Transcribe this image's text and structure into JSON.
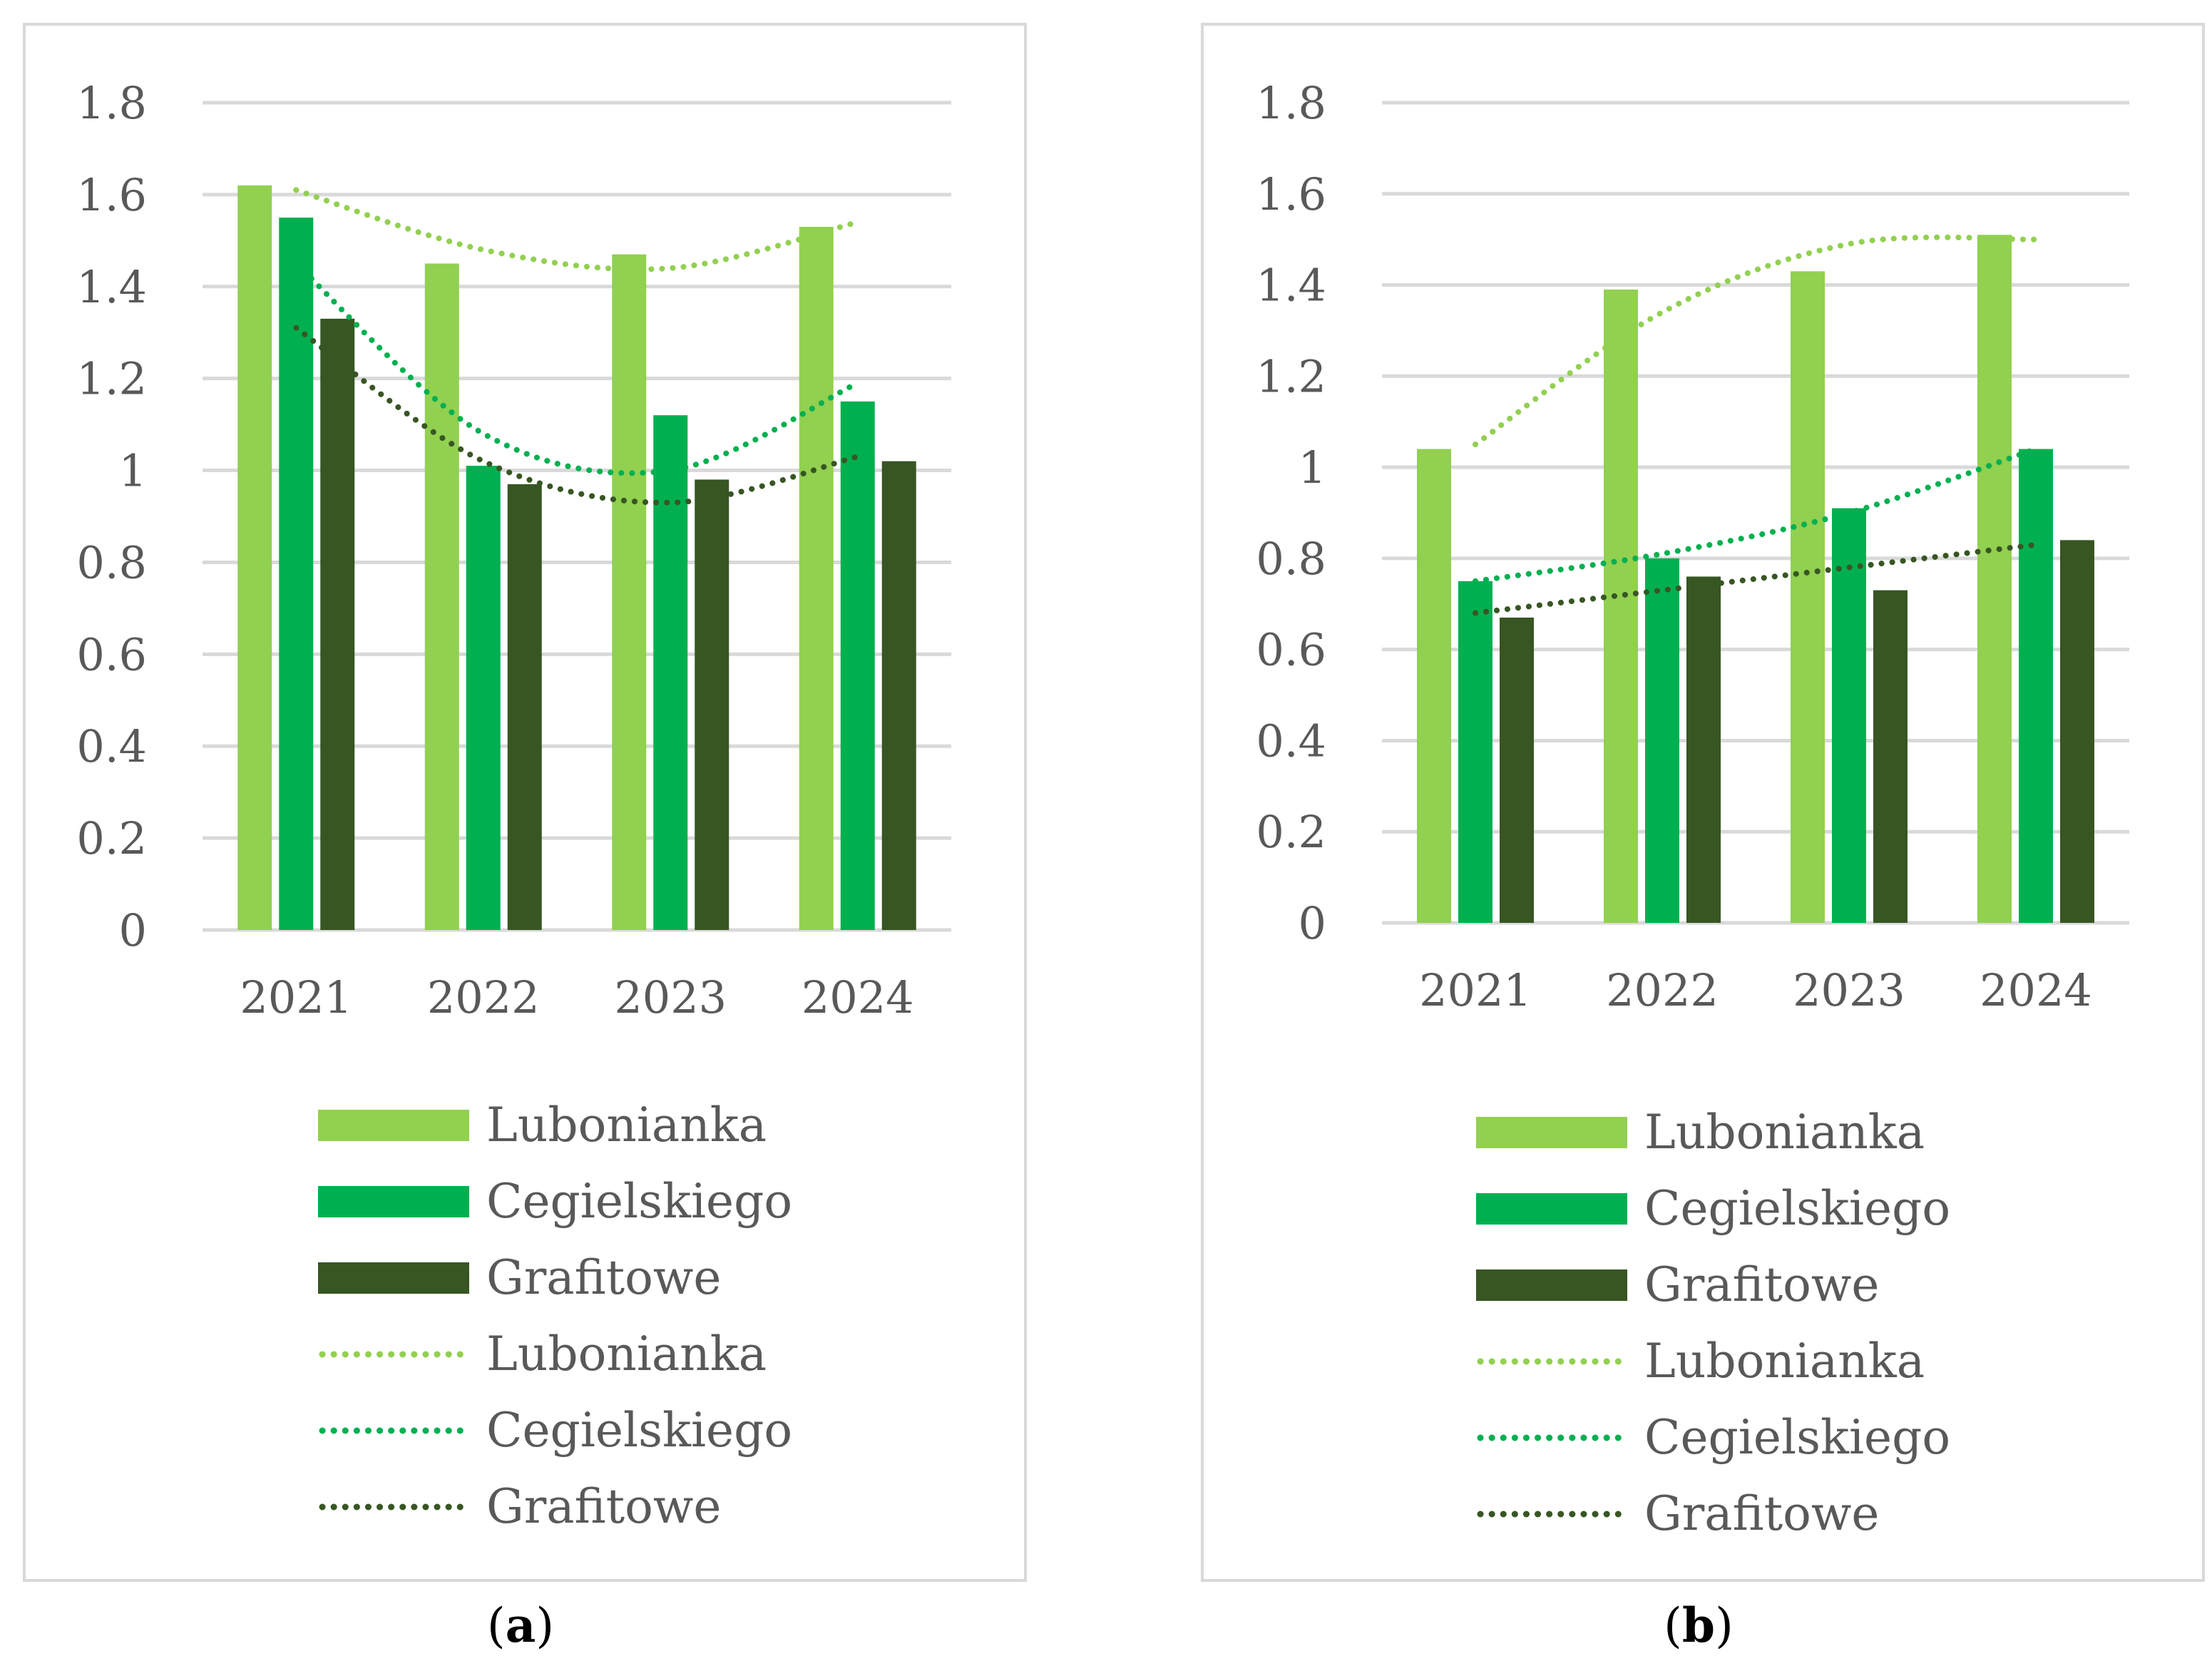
{
  "colors": {
    "lubonianka": "#92d050",
    "cegielskiego": "#00b050",
    "grafitowe": "#375623",
    "grid": "#d9d9d9",
    "text": "#595959"
  },
  "captions": {
    "a_open": "(",
    "a_letter": "a",
    "a_close": ")",
    "b_open": "(",
    "b_letter": "b",
    "b_close": ")"
  },
  "chart_data": [
    {
      "id": "a",
      "type": "bar",
      "categories": [
        "2021",
        "2022",
        "2023",
        "2024"
      ],
      "ylim": [
        0,
        1.8
      ],
      "yticks": [
        "0",
        "0.2",
        "0.4",
        "0.6",
        "0.8",
        "1",
        "1.2",
        "1.4",
        "1.6",
        "1.8"
      ],
      "series": [
        {
          "name": "Lubonianka",
          "color": "#92d050",
          "values": [
            1.62,
            1.45,
            1.47,
            1.53
          ]
        },
        {
          "name": "Cegielskiego",
          "color": "#00b050",
          "values": [
            1.55,
            1.01,
            1.12,
            1.15
          ]
        },
        {
          "name": "Grafitowe",
          "color": "#375623",
          "values": [
            1.33,
            0.97,
            0.98,
            1.02
          ]
        }
      ],
      "trendlines": [
        {
          "name": "Lubonianka",
          "color": "#92d050",
          "values": [
            1.61,
            1.48,
            1.44,
            1.54
          ]
        },
        {
          "name": "Cegielskiego",
          "color": "#00b050",
          "values": [
            1.45,
            1.08,
            1.0,
            1.19
          ]
        },
        {
          "name": "Grafitowe",
          "color": "#375623",
          "values": [
            1.31,
            1.02,
            0.93,
            1.03
          ]
        }
      ],
      "legend_position": "bottom"
    },
    {
      "id": "b",
      "type": "bar",
      "categories": [
        "2021",
        "2022",
        "2023",
        "2024"
      ],
      "ylim": [
        0,
        1.8
      ],
      "yticks": [
        "0",
        "0.2",
        "0.4",
        "0.6",
        "0.8",
        "1",
        "1.2",
        "1.4",
        "1.6",
        "1.8"
      ],
      "series": [
        {
          "name": "Lubonianka",
          "color": "#92d050",
          "values": [
            1.04,
            1.39,
            1.43,
            1.51
          ]
        },
        {
          "name": "Cegielskiego",
          "color": "#00b050",
          "values": [
            0.75,
            0.8,
            0.91,
            1.04
          ]
        },
        {
          "name": "Grafitowe",
          "color": "#375623",
          "values": [
            0.67,
            0.76,
            0.73,
            0.84
          ]
        }
      ],
      "trendlines": [
        {
          "name": "Lubonianka",
          "color": "#92d050",
          "values": [
            1.05,
            1.34,
            1.49,
            1.5
          ]
        },
        {
          "name": "Cegielskiego",
          "color": "#00b050",
          "values": [
            0.75,
            0.81,
            0.9,
            1.04
          ]
        },
        {
          "name": "Grafitowe",
          "color": "#375623",
          "values": [
            0.68,
            0.73,
            0.78,
            0.83
          ]
        }
      ],
      "legend_position": "bottom"
    }
  ]
}
